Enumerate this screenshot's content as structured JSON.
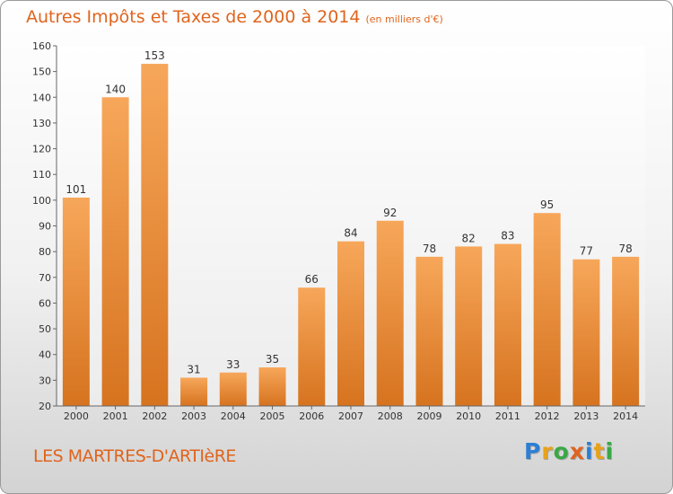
{
  "title": "Autres Impôts et Taxes de 2000 à 2014",
  "title_unit": "(en milliers d'€)",
  "commune": "LES MARTRES-D'ARTIèRE",
  "logo": {
    "letters": [
      "P",
      "r",
      "o",
      "x",
      "i",
      "t",
      "i"
    ],
    "colors": [
      "#2b7fd4",
      "#e8a21a",
      "#3aa845",
      "#e0641d",
      "#2b7fd4",
      "#e8a21a",
      "#3aa845"
    ]
  },
  "colors": {
    "bar_top": "#f7a75a",
    "bar_bottom": "#d6731f",
    "accent": "#e0641d"
  },
  "chart_data": {
    "type": "bar",
    "title": "Autres Impôts et Taxes de 2000 à 2014",
    "categories": [
      "2000",
      "2001",
      "2002",
      "2003",
      "2004",
      "2005",
      "2006",
      "2007",
      "2008",
      "2009",
      "2010",
      "2011",
      "2012",
      "2013",
      "2014"
    ],
    "values": [
      101,
      140,
      153,
      31,
      33,
      35,
      66,
      84,
      92,
      78,
      82,
      83,
      95,
      77,
      78
    ],
    "ylim": [
      20,
      160
    ],
    "yticks": [
      20,
      30,
      40,
      50,
      60,
      70,
      80,
      90,
      100,
      110,
      120,
      130,
      140,
      150,
      160
    ],
    "grid": false,
    "data_labels": true
  }
}
